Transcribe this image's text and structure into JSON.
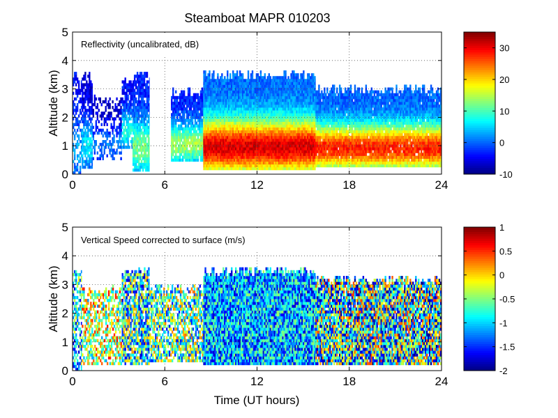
{
  "figure": {
    "title": "Steamboat MAPR 010203",
    "xlabel": "Time (UT hours)"
  },
  "chart_data": [
    {
      "type": "heatmap",
      "title": "Steamboat MAPR 010203",
      "annotation": "Reflectivity (uncalibrated, dB)",
      "xlabel": "",
      "ylabel": "Altitude (km)",
      "xlim": [
        0,
        24
      ],
      "ylim": [
        0,
        5
      ],
      "xticks": [
        0,
        6,
        12,
        18,
        24
      ],
      "yticks": [
        0,
        1,
        2,
        3,
        4,
        5
      ],
      "grid": true,
      "colorbar": {
        "clim": [
          -10,
          35
        ],
        "ticks": [
          -10,
          0,
          10,
          20,
          30
        ],
        "colormap": "jet"
      },
      "segments": [
        {
          "t0": 0.0,
          "t1": 0.6,
          "bottom": 0.0,
          "top": 3.6,
          "zmin": -5,
          "zmax": 3,
          "density": 0.55
        },
        {
          "t0": 0.6,
          "t1": 1.3,
          "bottom": 0.2,
          "top": 3.6,
          "zmin": -8,
          "zmax": 6,
          "density": 0.8
        },
        {
          "t0": 1.3,
          "t1": 3.2,
          "bottom": 0.5,
          "top": 2.8,
          "zmin": -8,
          "zmax": 1,
          "density": 0.45
        },
        {
          "t0": 3.2,
          "t1": 3.9,
          "bottom": 0.9,
          "top": 3.4,
          "zmin": -6,
          "zmax": 8,
          "density": 0.8
        },
        {
          "t0": 3.9,
          "t1": 5.0,
          "bottom": 0.1,
          "top": 3.6,
          "zmin": -6,
          "zmax": 12,
          "density": 0.9
        },
        {
          "t0": 6.4,
          "t1": 8.5,
          "bottom": 0.45,
          "top": 3.0,
          "zmin": -6,
          "zmax": 14,
          "density": 0.9
        },
        {
          "t0": 8.5,
          "t1": 15.8,
          "bottom": 0.15,
          "top": 3.6,
          "zmin": -5,
          "zmax": 31,
          "density": 1.0
        },
        {
          "t0": 15.8,
          "t1": 24.0,
          "bottom": 0.25,
          "top": 3.1,
          "zmin": -5,
          "zmax": 28,
          "density": 0.97
        }
      ]
    },
    {
      "type": "heatmap",
      "title": "",
      "annotation": "Vertical Speed corrected to surface (m/s)",
      "xlabel": "Time (UT hours)",
      "ylabel": "Altitude (km)",
      "xlim": [
        0,
        24
      ],
      "ylim": [
        0,
        5
      ],
      "xticks": [
        0,
        6,
        12,
        18,
        24
      ],
      "yticks": [
        0,
        1,
        2,
        3,
        4,
        5
      ],
      "grid": true,
      "colorbar": {
        "clim": [
          -2,
          1
        ],
        "ticks": [
          -2,
          -1.5,
          -1,
          -0.5,
          0,
          0.5,
          1
        ],
        "colormap": "jet"
      },
      "segments": [
        {
          "t0": 0.0,
          "t1": 0.6,
          "bottom": 0.0,
          "top": 3.6,
          "zmin": -1.8,
          "zmax": 0.0,
          "density": 0.6
        },
        {
          "t0": 0.6,
          "t1": 3.2,
          "bottom": 0.2,
          "top": 3.0,
          "zmin": -1.2,
          "zmax": 0.6,
          "density": 0.55
        },
        {
          "t0": 3.2,
          "t1": 5.0,
          "bottom": 0.2,
          "top": 3.6,
          "zmin": -1.8,
          "zmax": 0.2,
          "density": 0.8
        },
        {
          "t0": 5.0,
          "t1": 8.5,
          "bottom": 0.3,
          "top": 3.0,
          "zmin": -1.6,
          "zmax": 0.3,
          "density": 0.7
        },
        {
          "t0": 8.5,
          "t1": 15.8,
          "bottom": 0.2,
          "top": 3.6,
          "zmin": -1.8,
          "zmax": -0.4,
          "density": 1.0
        },
        {
          "t0": 15.8,
          "t1": 24.0,
          "bottom": 0.2,
          "top": 3.3,
          "zmin": -2.0,
          "zmax": 0.5,
          "density": 0.95
        }
      ]
    }
  ]
}
